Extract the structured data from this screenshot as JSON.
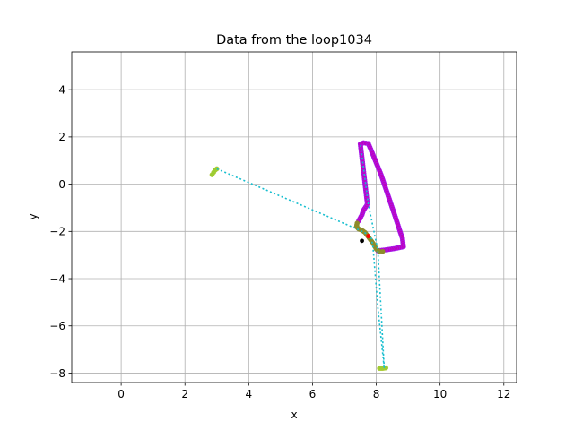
{
  "chart_data": {
    "type": "scatter",
    "title": "Data from the loop1034",
    "xlabel": "x",
    "ylabel": "y",
    "xlim": [
      -1.55,
      12.4
    ],
    "ylim": [
      -8.4,
      5.6
    ],
    "xticks": [
      0,
      2,
      4,
      6,
      8,
      10,
      12
    ],
    "yticks": [
      -8,
      -6,
      -4,
      -2,
      0,
      2,
      4
    ],
    "grid": true,
    "colors": {
      "path": "#bf00bf",
      "path_edge": "#a020f0",
      "olive": "#8c8c2a",
      "lime": "#9acd32",
      "connector": "#17becf",
      "red": "#ff0000",
      "black": "#000000"
    },
    "series": [
      {
        "kind": "path",
        "points": [
          [
            7.45,
            -1.55
          ],
          [
            7.55,
            -1.3
          ],
          [
            7.6,
            -1.1
          ],
          [
            7.7,
            -0.9
          ],
          [
            7.72,
            -0.82
          ],
          [
            7.5,
            1.7
          ],
          [
            7.6,
            1.75
          ],
          [
            7.75,
            1.72
          ],
          [
            7.85,
            1.4
          ],
          [
            8.0,
            0.9
          ],
          [
            8.15,
            0.4
          ],
          [
            8.3,
            -0.2
          ],
          [
            8.45,
            -0.8
          ],
          [
            8.6,
            -1.4
          ],
          [
            8.72,
            -1.9
          ],
          [
            8.82,
            -2.3
          ],
          [
            8.85,
            -2.65
          ],
          [
            8.6,
            -2.72
          ],
          [
            8.3,
            -2.78
          ],
          [
            8.05,
            -2.82
          ]
        ]
      },
      {
        "kind": "olive",
        "points": [
          [
            7.4,
            -1.65
          ],
          [
            7.38,
            -1.8
          ],
          [
            7.45,
            -1.9
          ],
          [
            7.55,
            -1.95
          ],
          [
            7.65,
            -2.05
          ],
          [
            7.9,
            -2.5
          ],
          [
            8.0,
            -2.75
          ],
          [
            8.1,
            -2.85
          ],
          [
            8.2,
            -2.85
          ]
        ]
      },
      {
        "kind": "lime",
        "points": [
          [
            2.85,
            0.4
          ],
          [
            2.9,
            0.5
          ],
          [
            2.95,
            0.6
          ],
          [
            3.0,
            0.65
          ],
          [
            8.1,
            -7.8
          ],
          [
            8.2,
            -7.8
          ],
          [
            8.3,
            -7.78
          ]
        ]
      },
      {
        "kind": "connector",
        "points": [
          [
            3.0,
            0.65
          ],
          [
            7.4,
            -1.9
          ],
          [
            7.55,
            -2.0
          ],
          [
            7.7,
            -2.1
          ],
          [
            7.85,
            -2.3
          ],
          [
            7.9,
            -2.7
          ],
          [
            8.05,
            -5.2
          ],
          [
            8.25,
            -7.8
          ],
          [
            8.05,
            -2.8
          ],
          [
            7.75,
            -0.85
          ],
          [
            7.5,
            1.7
          ]
        ]
      },
      {
        "kind": "red",
        "points": [
          [
            7.75,
            -2.2
          ]
        ]
      },
      {
        "kind": "black",
        "points": [
          [
            7.55,
            -2.4
          ]
        ]
      }
    ]
  }
}
